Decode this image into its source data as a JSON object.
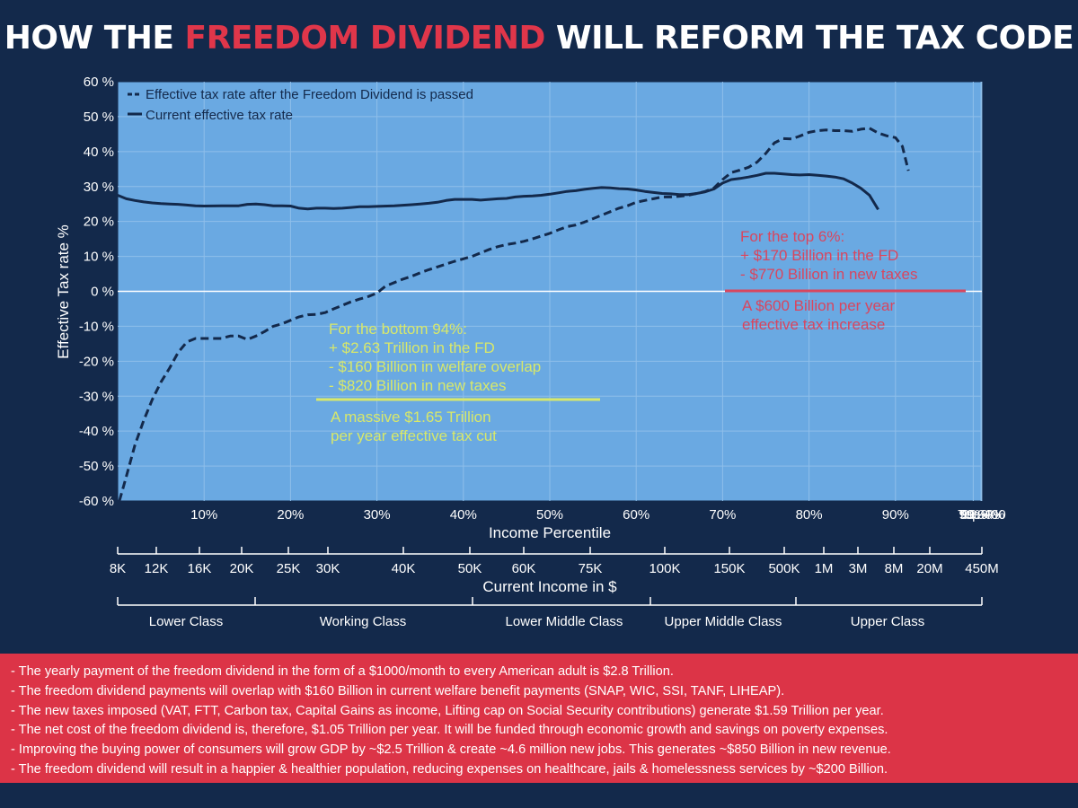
{
  "title": {
    "part1": "HOW THE ",
    "highlight": "FREEDOM DIVIDEND",
    "part2": " WILL REFORM THE TAX CODE"
  },
  "colors": {
    "background": "#13294b",
    "plot_area": "#6aa9e2",
    "accent_red": "#dc3447",
    "annotation_green": "#d8e86a",
    "annotation_red": "#d8465f",
    "series_line": "#13294b"
  },
  "chart_data": {
    "type": "line",
    "title": "HOW THE FREEDOM DIVIDEND WILL REFORM THE TAX CODE",
    "xlabel": "Income Percentile",
    "ylabel": "Effective Tax rate %",
    "ylim": [
      -60,
      60
    ],
    "yticks": [
      "60 %",
      "50 %",
      "40 %",
      "30 %",
      "20 %",
      "10 %",
      "0 %",
      "-10 %",
      "-20 %",
      "-30 %",
      "-40 %",
      "-50 %",
      "-60 %"
    ],
    "ytick_values": [
      60,
      50,
      40,
      30,
      20,
      10,
      0,
      -10,
      -20,
      -30,
      -40,
      -50,
      -60
    ],
    "x_ticks": [
      "10%",
      "20%",
      "30%",
      "40%",
      "50%",
      "60%",
      "70%",
      "80%",
      "90%",
      "99%",
      "99.9%",
      "99.99%",
      "Top 400"
    ],
    "x_tick_positions": [
      10,
      20,
      30,
      40,
      50,
      60,
      70,
      80,
      90,
      99,
      99.9,
      99.99,
      100
    ],
    "grid": true,
    "legend_position": "top-left",
    "series": [
      {
        "name": "Effective tax rate after the Freedom Dividend is passed",
        "style": "dashed",
        "points": [
          [
            0.2,
            -60
          ],
          [
            1,
            -53
          ],
          [
            2,
            -44
          ],
          [
            3,
            -37
          ],
          [
            4,
            -31
          ],
          [
            5,
            -26
          ],
          [
            6,
            -22
          ],
          [
            7,
            -17.5
          ],
          [
            8,
            -14.5
          ],
          [
            9,
            -13.5
          ],
          [
            10,
            -13.5
          ],
          [
            11,
            -13.5
          ],
          [
            12,
            -13.5
          ],
          [
            13,
            -12.8
          ],
          [
            14,
            -12.8
          ],
          [
            15,
            -13.8
          ],
          [
            16,
            -12.8
          ],
          [
            17,
            -11.5
          ],
          [
            18,
            -10
          ],
          [
            19,
            -9.3
          ],
          [
            20,
            -8.3
          ],
          [
            21,
            -7.3
          ],
          [
            22,
            -6.7
          ],
          [
            23,
            -6.6
          ],
          [
            24,
            -6.1
          ],
          [
            25,
            -5
          ],
          [
            26,
            -4
          ],
          [
            27,
            -3
          ],
          [
            28,
            -2.2
          ],
          [
            29,
            -1.5
          ],
          [
            30,
            -0.5
          ],
          [
            31,
            1.5
          ],
          [
            32,
            2.5
          ],
          [
            33,
            3.5
          ],
          [
            34,
            4.3
          ],
          [
            35,
            5.3
          ],
          [
            36,
            6.2
          ],
          [
            37,
            7
          ],
          [
            38,
            7.8
          ],
          [
            39,
            8.6
          ],
          [
            40,
            9.3
          ],
          [
            41,
            10
          ],
          [
            42,
            11
          ],
          [
            43,
            12
          ],
          [
            44,
            12.8
          ],
          [
            45,
            13.4
          ],
          [
            46,
            13.8
          ],
          [
            47,
            14.3
          ],
          [
            48,
            15
          ],
          [
            49,
            15.8
          ],
          [
            50,
            16.6
          ],
          [
            51,
            17.6
          ],
          [
            52,
            18.5
          ],
          [
            53,
            19
          ],
          [
            54,
            19.8
          ],
          [
            55,
            20.8
          ],
          [
            56,
            21.8
          ],
          [
            57,
            22.8
          ],
          [
            58,
            23.8
          ],
          [
            59,
            24.5
          ],
          [
            60,
            25.5
          ],
          [
            61,
            26
          ],
          [
            62,
            26.5
          ],
          [
            63,
            27
          ],
          [
            64,
            27
          ],
          [
            65,
            27.2
          ],
          [
            66,
            27.5
          ],
          [
            67,
            28
          ],
          [
            68,
            28.6
          ],
          [
            69,
            29.6
          ],
          [
            70,
            32
          ],
          [
            71,
            34
          ],
          [
            72,
            34.7
          ],
          [
            73,
            35.5
          ],
          [
            74,
            37
          ],
          [
            75,
            39.5
          ],
          [
            76,
            42.5
          ],
          [
            77,
            43.7
          ],
          [
            78,
            43.6
          ],
          [
            79,
            44.5
          ],
          [
            80,
            45.5
          ],
          [
            81,
            46
          ],
          [
            82,
            46.2
          ],
          [
            83,
            46
          ],
          [
            84,
            46
          ],
          [
            85,
            45.8
          ],
          [
            86,
            46.4
          ],
          [
            87,
            46.7
          ],
          [
            88,
            45.3
          ],
          [
            89,
            44.5
          ],
          [
            90,
            44
          ],
          [
            90.8,
            41.5
          ],
          [
            91.5,
            34.5
          ]
        ]
      },
      {
        "name": "Current effective tax rate",
        "style": "solid",
        "points": [
          [
            0,
            27.5
          ],
          [
            1,
            26.5
          ],
          [
            2,
            26
          ],
          [
            3,
            25.6
          ],
          [
            4,
            25.3
          ],
          [
            5,
            25.1
          ],
          [
            6,
            25
          ],
          [
            7,
            24.9
          ],
          [
            8,
            24.7
          ],
          [
            9,
            24.5
          ],
          [
            10,
            24.4
          ],
          [
            12,
            24.5
          ],
          [
            14,
            24.5
          ],
          [
            15,
            24.9
          ],
          [
            16,
            25
          ],
          [
            17,
            24.8
          ],
          [
            18,
            24.5
          ],
          [
            19,
            24.5
          ],
          [
            20,
            24.4
          ],
          [
            21,
            23.8
          ],
          [
            22,
            23.6
          ],
          [
            23,
            23.8
          ],
          [
            24,
            23.8
          ],
          [
            25,
            23.7
          ],
          [
            26,
            23.8
          ],
          [
            27,
            24
          ],
          [
            28,
            24.2
          ],
          [
            29,
            24.2
          ],
          [
            30,
            24.3
          ],
          [
            32,
            24.5
          ],
          [
            34,
            24.8
          ],
          [
            35,
            25
          ],
          [
            36,
            25.2
          ],
          [
            37,
            25.5
          ],
          [
            38,
            26
          ],
          [
            39,
            26.3
          ],
          [
            40,
            26.3
          ],
          [
            41,
            26.3
          ],
          [
            42,
            26.1
          ],
          [
            43,
            26.3
          ],
          [
            44,
            26.5
          ],
          [
            45,
            26.6
          ],
          [
            46,
            27
          ],
          [
            47,
            27.2
          ],
          [
            48,
            27.3
          ],
          [
            49,
            27.5
          ],
          [
            50,
            27.8
          ],
          [
            51,
            28.2
          ],
          [
            52,
            28.6
          ],
          [
            53,
            28.8
          ],
          [
            54,
            29.2
          ],
          [
            55,
            29.5
          ],
          [
            56,
            29.7
          ],
          [
            57,
            29.6
          ],
          [
            58,
            29.4
          ],
          [
            59,
            29.3
          ],
          [
            60,
            29
          ],
          [
            61,
            28.6
          ],
          [
            62,
            28.3
          ],
          [
            63,
            28
          ],
          [
            64,
            27.9
          ],
          [
            65,
            27.7
          ],
          [
            66,
            27.7
          ],
          [
            67,
            28
          ],
          [
            68,
            28.5
          ],
          [
            69,
            29.3
          ],
          [
            70,
            31
          ],
          [
            71,
            32
          ],
          [
            72,
            32.3
          ],
          [
            73,
            32.7
          ],
          [
            74,
            33.2
          ],
          [
            75,
            33.8
          ],
          [
            76,
            33.8
          ],
          [
            77,
            33.6
          ],
          [
            78,
            33.4
          ],
          [
            79,
            33.3
          ],
          [
            80,
            33.4
          ],
          [
            81,
            33.2
          ],
          [
            82,
            33
          ],
          [
            83,
            32.7
          ],
          [
            84,
            32.2
          ],
          [
            85,
            31
          ],
          [
            86,
            29.5
          ],
          [
            87,
            27.5
          ],
          [
            88,
            23.4
          ]
        ]
      }
    ],
    "income_axis": {
      "label": "Current Income in $",
      "ticks": [
        "8K",
        "12K",
        "16K",
        "20K",
        "25K",
        "30K",
        "40K",
        "50K",
        "60K",
        "75K",
        "100K",
        "150K",
        "500K",
        "1M",
        "3M",
        "8M",
        "20M",
        "450M"
      ]
    },
    "class_axis": {
      "labels": [
        "Lower Class",
        "Working Class",
        "Lower Middle Class",
        "Upper Middle Class",
        "Upper Class"
      ]
    },
    "annotations": {
      "bottom": {
        "lines": [
          "For the bottom 94%:",
          "+ $2.63 Trillion in the FD",
          "- $160 Billion in welfare overlap",
          "- $820 Billion in new taxes"
        ],
        "result": [
          "A massive $1.65 Trillion",
          "per year effective tax cut"
        ]
      },
      "top": {
        "lines": [
          "For the top 6%:",
          "+ $170 Billion in the FD",
          "- $770 Billion in new taxes"
        ],
        "result": [
          "A $600 Billion per year",
          "effective tax increase"
        ]
      }
    }
  },
  "notes": [
    "- The yearly payment of the freedom dividend in the form of a $1000/month to every American adult is $2.8 Trillion.",
    "- The freedom dividend payments will overlap with $160 Billion in current welfare benefit payments (SNAP, WIC, SSI, TANF, LIHEAP).",
    "- The new taxes imposed (VAT, FTT, Carbon tax, Capital Gains as income, Lifting cap on Social Security contributions) generate $1.59 Trillion per year.",
    "- The net cost of the freedom dividend is, therefore, $1.05 Trillion per year. It will be funded through economic growth and savings on poverty expenses.",
    "- Improving the buying power of consumers will grow GDP by ~$2.5 Trillion & create ~4.6 million new jobs. This generates ~$850 Billion in new revenue.",
    "- The freedom dividend will result in a happier & healthier population, reducing expenses on healthcare, jails & homelessness services by ~$200 Billion."
  ]
}
